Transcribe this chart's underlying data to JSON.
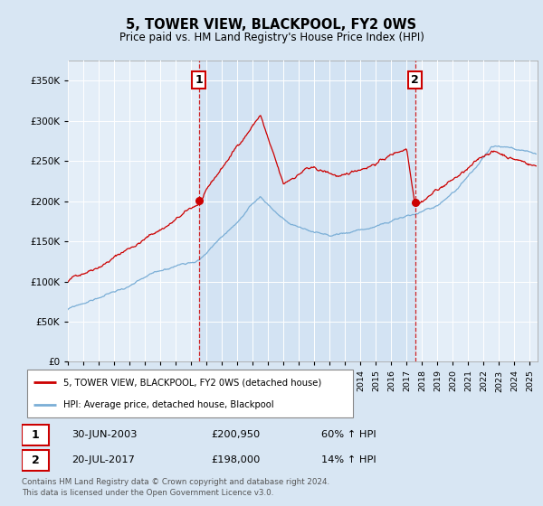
{
  "title": "5, TOWER VIEW, BLACKPOOL, FY2 0WS",
  "subtitle": "Price paid vs. HM Land Registry's House Price Index (HPI)",
  "ylim": [
    0,
    375000
  ],
  "yticks": [
    0,
    50000,
    100000,
    150000,
    200000,
    250000,
    300000,
    350000
  ],
  "bg_color": "#d8e6f3",
  "plot_bg": "#e4eef8",
  "red_color": "#cc0000",
  "blue_color": "#7aaed6",
  "sale1_date": 2003.5,
  "sale1_price": 200950,
  "sale2_date": 2017.55,
  "sale2_price": 198000,
  "legend_line1": "5, TOWER VIEW, BLACKPOOL, FY2 0WS (detached house)",
  "legend_line2": "HPI: Average price, detached house, Blackpool",
  "sale1_text": "30-JUN-2003",
  "sale1_amount": "£200,950",
  "sale1_hpi": "60% ↑ HPI",
  "sale2_text": "20-JUL-2017",
  "sale2_amount": "£198,000",
  "sale2_hpi": "14% ↑ HPI",
  "footer": "Contains HM Land Registry data © Crown copyright and database right 2024.\nThis data is licensed under the Open Government Licence v3.0.",
  "xmin": 1995.0,
  "xmax": 2025.5,
  "xticks": [
    1995,
    1996,
    1997,
    1998,
    1999,
    2000,
    2001,
    2002,
    2003,
    2004,
    2005,
    2006,
    2007,
    2008,
    2009,
    2010,
    2011,
    2012,
    2013,
    2014,
    2015,
    2016,
    2017,
    2018,
    2019,
    2020,
    2021,
    2022,
    2023,
    2024,
    2025
  ]
}
